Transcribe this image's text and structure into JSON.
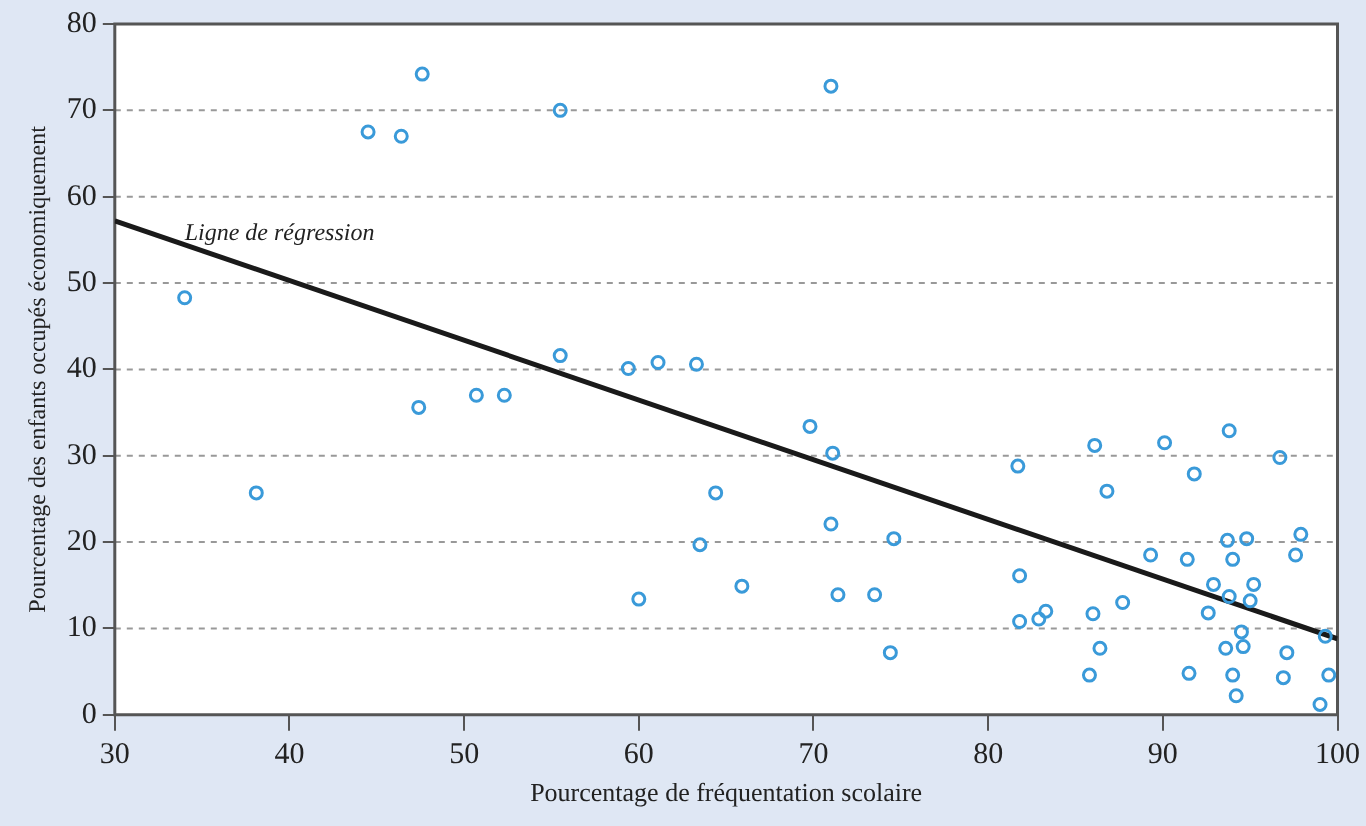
{
  "chart_data": {
    "type": "scatter",
    "xlabel": "Pourcentage de fréquentation scolaire",
    "ylabel": "Pourcentage des enfants occupés économiquement",
    "xlim": [
      30,
      100
    ],
    "xticks": [
      30,
      40,
      50,
      60,
      70,
      80,
      90,
      100
    ],
    "ylim": [
      0,
      80
    ],
    "yticks": [
      0,
      10,
      20,
      30,
      40,
      50,
      60,
      70,
      80
    ],
    "grid": "y",
    "marker": "circle",
    "series": [
      {
        "color": "#3a9ad9",
        "x": [
          34.0,
          38.1,
          47.6,
          44.5,
          46.4,
          55.5,
          71.0,
          47.4,
          50.7,
          52.3,
          55.5,
          59.4,
          61.1,
          63.3,
          69.8,
          71.1,
          60.0,
          63.5,
          64.4,
          65.9,
          71.0,
          71.4,
          73.5,
          74.4,
          74.6,
          81.7,
          81.8,
          81.8,
          82.9,
          83.3,
          86.0,
          86.1,
          86.4,
          85.8,
          86.8,
          87.7,
          90.1,
          89.3,
          91.4,
          91.8,
          91.5,
          93.8,
          93.7,
          92.9,
          92.6,
          93.8,
          94.8,
          94.0,
          95.2,
          95.0,
          94.5,
          93.6,
          94.6,
          94.0,
          94.2,
          96.7,
          97.9,
          97.6,
          97.1,
          96.9,
          99.3,
          99.5,
          99.0
        ],
        "values": [
          48.3,
          25.7,
          74.2,
          67.5,
          67.0,
          70.0,
          72.8,
          35.6,
          37.0,
          37.0,
          41.6,
          40.1,
          40.8,
          40.6,
          33.4,
          30.3,
          13.4,
          19.7,
          25.7,
          14.9,
          22.1,
          13.9,
          13.9,
          7.2,
          20.4,
          28.8,
          16.1,
          10.8,
          11.1,
          12.0,
          11.7,
          31.2,
          7.7,
          4.6,
          25.9,
          13.0,
          31.5,
          18.5,
          18.0,
          27.9,
          4.8,
          32.9,
          20.2,
          15.1,
          11.8,
          13.7,
          20.4,
          18.0,
          15.1,
          13.2,
          9.6,
          7.7,
          7.9,
          4.6,
          2.2,
          29.8,
          20.9,
          18.5,
          7.2,
          4.3,
          9.1,
          4.6,
          1.2
        ]
      },
      {
        "type": "line",
        "color": "#1a1a1a",
        "x": [
          30,
          100
        ],
        "values": [
          57.2,
          8.8
        ],
        "line_style": "solid",
        "marker": "none"
      }
    ],
    "annotations": [
      {
        "text": "Ligne de régression",
        "x": 34,
        "y": 55
      }
    ]
  }
}
